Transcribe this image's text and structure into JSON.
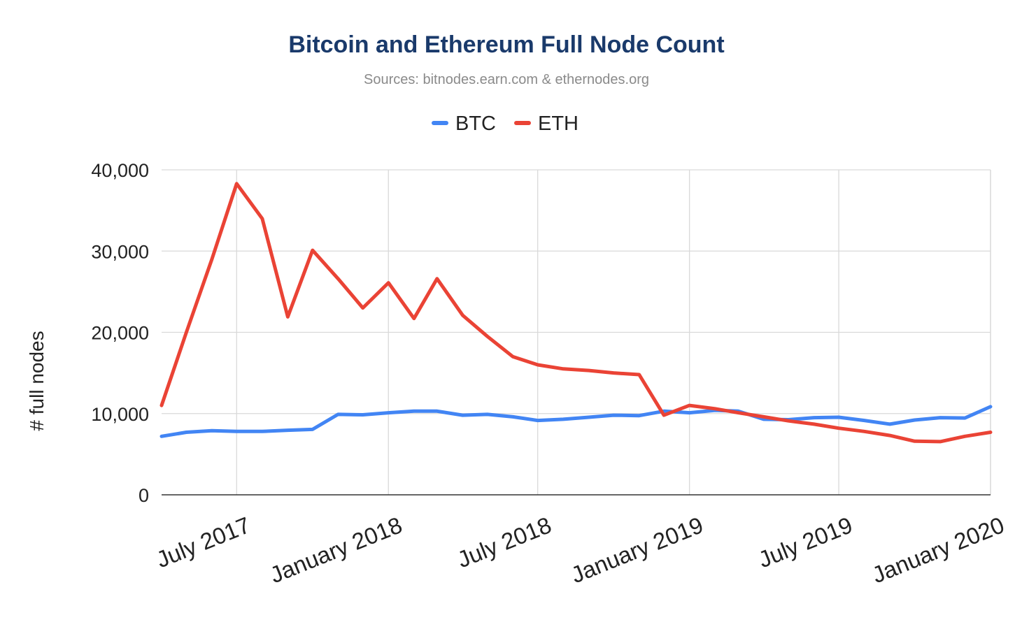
{
  "chart_data": {
    "type": "line",
    "title": "Bitcoin and Ethereum Full Node Count",
    "subtitle": "Sources: bitnodes.earn.com & ethernodes.org",
    "xlabel": "",
    "ylabel": "# full nodes",
    "xlim": [
      "2017-04-01",
      "2020-01-01"
    ],
    "ylim": [
      0,
      40000
    ],
    "y_ticks": [
      {
        "value": 0,
        "label": "0"
      },
      {
        "value": 10000,
        "label": "10,000"
      },
      {
        "value": 20000,
        "label": "20,000"
      },
      {
        "value": 30000,
        "label": "30,000"
      },
      {
        "value": 40000,
        "label": "40,000"
      }
    ],
    "x_ticks": [
      {
        "date": "2017-07-01",
        "label": "July 2017"
      },
      {
        "date": "2018-01-01",
        "label": "January 2018"
      },
      {
        "date": "2018-07-01",
        "label": "July 2018"
      },
      {
        "date": "2019-01-01",
        "label": "January 2019"
      },
      {
        "date": "2019-07-01",
        "label": "July 2019"
      },
      {
        "date": "2020-01-01",
        "label": "January 2020"
      }
    ],
    "grid": true,
    "legend_position": "top",
    "series": [
      {
        "name": "BTC",
        "color": "#4285f4",
        "points": [
          [
            "2017-04-01",
            7200
          ],
          [
            "2017-05-01",
            7700
          ],
          [
            "2017-06-01",
            7900
          ],
          [
            "2017-07-01",
            7800
          ],
          [
            "2017-08-01",
            7800
          ],
          [
            "2017-09-01",
            7950
          ],
          [
            "2017-10-01",
            8050
          ],
          [
            "2017-11-01",
            9900
          ],
          [
            "2017-12-01",
            9850
          ],
          [
            "2018-01-01",
            10100
          ],
          [
            "2018-02-01",
            10300
          ],
          [
            "2018-03-01",
            10300
          ],
          [
            "2018-04-01",
            9800
          ],
          [
            "2018-05-01",
            9900
          ],
          [
            "2018-06-01",
            9600
          ],
          [
            "2018-07-01",
            9150
          ],
          [
            "2018-08-01",
            9300
          ],
          [
            "2018-09-01",
            9550
          ],
          [
            "2018-10-01",
            9800
          ],
          [
            "2018-11-01",
            9750
          ],
          [
            "2018-12-01",
            10300
          ],
          [
            "2019-01-01",
            10100
          ],
          [
            "2019-02-01",
            10400
          ],
          [
            "2019-03-01",
            10300
          ],
          [
            "2019-04-01",
            9300
          ],
          [
            "2019-05-01",
            9250
          ],
          [
            "2019-06-01",
            9500
          ],
          [
            "2019-07-01",
            9550
          ],
          [
            "2019-08-01",
            9150
          ],
          [
            "2019-09-01",
            8700
          ],
          [
            "2019-10-01",
            9200
          ],
          [
            "2019-11-01",
            9500
          ],
          [
            "2019-12-01",
            9450
          ],
          [
            "2020-01-01",
            10850
          ]
        ]
      },
      {
        "name": "ETH",
        "color": "#ea4335",
        "points": [
          [
            "2017-04-01",
            11000
          ],
          [
            "2017-05-01",
            20000
          ],
          [
            "2017-06-01",
            29000
          ],
          [
            "2017-07-01",
            38300
          ],
          [
            "2017-08-01",
            34000
          ],
          [
            "2017-09-01",
            21900
          ],
          [
            "2017-10-01",
            30100
          ],
          [
            "2017-11-01",
            26600
          ],
          [
            "2017-12-01",
            23000
          ],
          [
            "2018-01-01",
            26100
          ],
          [
            "2018-02-01",
            21700
          ],
          [
            "2018-03-01",
            26600
          ],
          [
            "2018-04-01",
            22100
          ],
          [
            "2018-05-01",
            19500
          ],
          [
            "2018-06-01",
            17000
          ],
          [
            "2018-07-01",
            16000
          ],
          [
            "2018-08-01",
            15500
          ],
          [
            "2018-09-01",
            15300
          ],
          [
            "2018-10-01",
            15000
          ],
          [
            "2018-11-01",
            14800
          ],
          [
            "2018-12-01",
            9800
          ],
          [
            "2019-01-01",
            11000
          ],
          [
            "2019-02-01",
            10600
          ],
          [
            "2019-03-01",
            10100
          ],
          [
            "2019-04-01",
            9600
          ],
          [
            "2019-05-01",
            9100
          ],
          [
            "2019-06-01",
            8700
          ],
          [
            "2019-07-01",
            8200
          ],
          [
            "2019-08-01",
            7800
          ],
          [
            "2019-09-01",
            7300
          ],
          [
            "2019-10-01",
            6600
          ],
          [
            "2019-11-01",
            6550
          ],
          [
            "2019-12-01",
            7200
          ],
          [
            "2020-01-01",
            7700
          ]
        ]
      }
    ]
  }
}
